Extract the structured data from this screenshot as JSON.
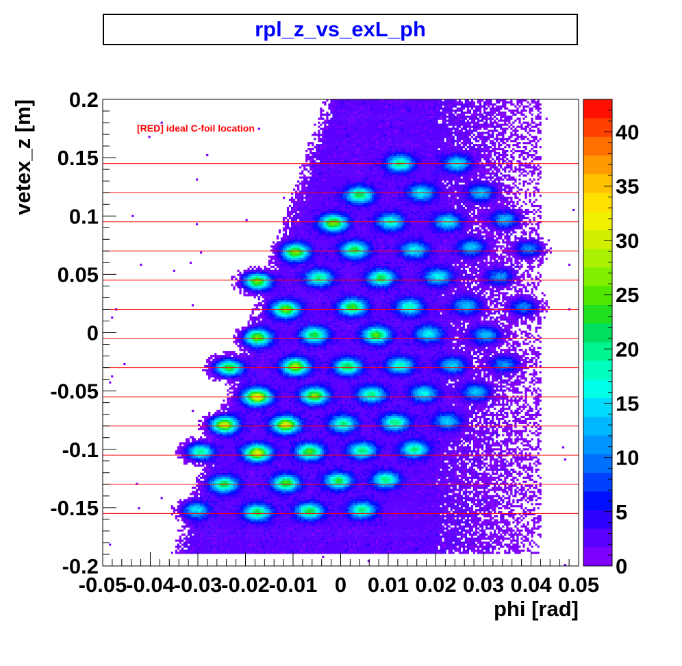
{
  "chart_data": {
    "type": "heatmap",
    "title": "rpl_z_vs_exL_ph",
    "xlabel": "phi [rad]",
    "ylabel": "vetex_z [m]",
    "xlim": [
      -0.05,
      0.05
    ],
    "ylim": [
      -0.2,
      0.2
    ],
    "zlim": [
      0,
      43
    ],
    "x_ticks": [
      "-0.05",
      "-0.04",
      "-0.03",
      "-0.02",
      "-0.01",
      "0",
      "0.01",
      "0.02",
      "0.03",
      "0.04",
      "0.05"
    ],
    "y_ticks": [
      "0.2",
      "0.15",
      "0.1",
      "0.05",
      "0",
      "-0.05",
      "-0.1",
      "-0.15",
      "-0.2"
    ],
    "color_scale_ticks": [
      "40",
      "35",
      "30",
      "25",
      "20",
      "15",
      "10",
      "5",
      "0"
    ],
    "annotation": "[RED] ideal C-foil location",
    "foil_lines_z": [
      0.145,
      0.12,
      0.095,
      0.07,
      0.045,
      0.02,
      -0.005,
      -0.03,
      -0.055,
      -0.08,
      -0.105,
      -0.13,
      -0.155
    ],
    "foil_line_color": "#ff0000",
    "hotspots": [
      {
        "x": 0.0125,
        "z": 0.145,
        "peak": 18
      },
      {
        "x": 0.0245,
        "z": 0.145,
        "peak": 14
      },
      {
        "x": 0.004,
        "z": 0.118,
        "peak": 20
      },
      {
        "x": 0.017,
        "z": 0.12,
        "peak": 14
      },
      {
        "x": 0.0295,
        "z": 0.12,
        "peak": 12
      },
      {
        "x": -0.0015,
        "z": 0.094,
        "peak": 24
      },
      {
        "x": 0.0105,
        "z": 0.095,
        "peak": 16
      },
      {
        "x": 0.0225,
        "z": 0.095,
        "peak": 14
      },
      {
        "x": 0.0345,
        "z": 0.097,
        "peak": 12
      },
      {
        "x": -0.0095,
        "z": 0.069,
        "peak": 24
      },
      {
        "x": 0.003,
        "z": 0.071,
        "peak": 20
      },
      {
        "x": 0.0155,
        "z": 0.071,
        "peak": 14
      },
      {
        "x": 0.0275,
        "z": 0.073,
        "peak": 12
      },
      {
        "x": 0.0395,
        "z": 0.072,
        "peak": 10
      },
      {
        "x": -0.0175,
        "z": 0.044,
        "peak": 26
      },
      {
        "x": -0.0045,
        "z": 0.047,
        "peak": 18
      },
      {
        "x": 0.0085,
        "z": 0.047,
        "peak": 20
      },
      {
        "x": 0.0205,
        "z": 0.048,
        "peak": 14
      },
      {
        "x": 0.0335,
        "z": 0.048,
        "peak": 10
      },
      {
        "x": -0.0115,
        "z": 0.02,
        "peak": 24
      },
      {
        "x": 0.0025,
        "z": 0.022,
        "peak": 22
      },
      {
        "x": 0.0145,
        "z": 0.022,
        "peak": 16
      },
      {
        "x": 0.0265,
        "z": 0.023,
        "peak": 12
      },
      {
        "x": 0.0385,
        "z": 0.022,
        "peak": 10
      },
      {
        "x": -0.0175,
        "z": -0.004,
        "peak": 24
      },
      {
        "x": -0.0055,
        "z": -0.002,
        "peak": 20
      },
      {
        "x": 0.0075,
        "z": -0.002,
        "peak": 22
      },
      {
        "x": 0.0185,
        "z": -0.001,
        "peak": 14
      },
      {
        "x": 0.0305,
        "z": -0.002,
        "peak": 12
      },
      {
        "x": -0.0235,
        "z": -0.03,
        "peak": 24
      },
      {
        "x": -0.0095,
        "z": -0.029,
        "peak": 26
      },
      {
        "x": 0.0015,
        "z": -0.029,
        "peak": 20
      },
      {
        "x": 0.0125,
        "z": -0.028,
        "peak": 16
      },
      {
        "x": 0.0235,
        "z": -0.028,
        "peak": 12
      },
      {
        "x": 0.0345,
        "z": -0.027,
        "peak": 10
      },
      {
        "x": -0.0175,
        "z": -0.055,
        "peak": 30
      },
      {
        "x": -0.0055,
        "z": -0.054,
        "peak": 24
      },
      {
        "x": 0.0065,
        "z": -0.053,
        "peak": 18
      },
      {
        "x": 0.0175,
        "z": -0.052,
        "peak": 14
      },
      {
        "x": 0.0285,
        "z": -0.051,
        "peak": 12
      },
      {
        "x": -0.0245,
        "z": -0.079,
        "peak": 28
      },
      {
        "x": -0.0115,
        "z": -0.079,
        "peak": 28
      },
      {
        "x": 0.0005,
        "z": -0.078,
        "peak": 18
      },
      {
        "x": 0.0115,
        "z": -0.077,
        "peak": 18
      },
      {
        "x": 0.0225,
        "z": -0.076,
        "peak": 12
      },
      {
        "x": -0.0295,
        "z": -0.102,
        "peak": 20
      },
      {
        "x": -0.0175,
        "z": -0.103,
        "peak": 28
      },
      {
        "x": -0.0065,
        "z": -0.102,
        "peak": 22
      },
      {
        "x": 0.0045,
        "z": -0.101,
        "peak": 18
      },
      {
        "x": 0.0155,
        "z": -0.1,
        "peak": 18
      },
      {
        "x": -0.0245,
        "z": -0.13,
        "peak": 20
      },
      {
        "x": -0.0115,
        "z": -0.129,
        "peak": 22
      },
      {
        "x": -0.0005,
        "z": -0.127,
        "peak": 20
      },
      {
        "x": 0.0095,
        "z": -0.126,
        "peak": 18
      },
      {
        "x": -0.0305,
        "z": -0.152,
        "peak": 14
      },
      {
        "x": -0.0175,
        "z": -0.154,
        "peak": 20
      },
      {
        "x": -0.0065,
        "z": -0.153,
        "peak": 20
      },
      {
        "x": 0.0045,
        "z": -0.152,
        "peak": 18
      }
    ]
  }
}
